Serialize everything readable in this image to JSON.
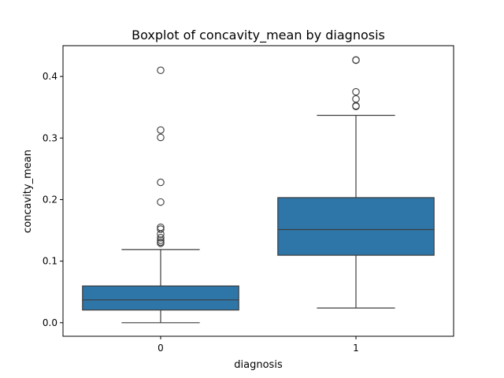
{
  "chart_data": {
    "type": "boxplot",
    "title": "Boxplot of concavity_mean by diagnosis",
    "xlabel": "diagnosis",
    "ylabel": "concavity_mean",
    "ylim": [
      -0.022,
      0.45
    ],
    "yticks": [
      0.0,
      0.1,
      0.2,
      0.3,
      0.4
    ],
    "ytick_labels": [
      "0.0",
      "0.1",
      "0.2",
      "0.3",
      "0.4"
    ],
    "box_color": "#2e75a8",
    "line_color": "#3d3d3d",
    "categories": [
      "0",
      "1"
    ],
    "boxes": [
      {
        "category": "0",
        "whisker_low": 0.0,
        "q1": 0.0206,
        "median": 0.0371,
        "q3": 0.0597,
        "whisker_high": 0.1189,
        "outliers": [
          0.41,
          0.313,
          0.301,
          0.228,
          0.196,
          0.155,
          0.152,
          0.144,
          0.138,
          0.134,
          0.131,
          0.129
        ]
      },
      {
        "category": "1",
        "whisker_low": 0.0239,
        "q1": 0.1096,
        "median": 0.1513,
        "q3": 0.2032,
        "whisker_high": 0.3368,
        "outliers": [
          0.4268,
          0.4264,
          0.375,
          0.3635,
          0.3523,
          0.3514
        ]
      }
    ]
  }
}
